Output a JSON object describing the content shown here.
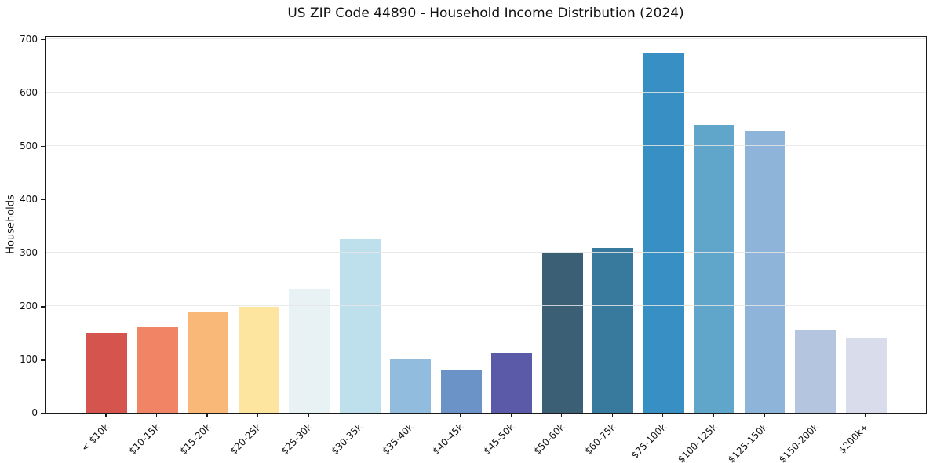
{
  "chart_data": {
    "type": "bar",
    "title": "US ZIP Code 44890 - Household Income Distribution (2024)",
    "xlabel": "",
    "ylabel": "Households",
    "categories": [
      "< $10k",
      "$10-15k",
      "$15-20k",
      "$20-25k",
      "$25-30k",
      "$30-35k",
      "$35-40k",
      "$40-45k",
      "$45-50k",
      "$50-60k",
      "$60-75k",
      "$75-100k",
      "$100-125k",
      "$125-150k",
      "$150-200k",
      "$200k+"
    ],
    "values": [
      150,
      160,
      190,
      199,
      232,
      326,
      102,
      80,
      112,
      298,
      309,
      674,
      540,
      527,
      155,
      140
    ],
    "bar_colors": [
      "#d5544d",
      "#f08465",
      "#f9b877",
      "#fde5a0",
      "#e8f2f5",
      "#bde0ec",
      "#92bcdd",
      "#6b93c8",
      "#5a5aa8",
      "#3b5f74",
      "#377a9e",
      "#378fc3",
      "#60a5ca",
      "#8fb4d9",
      "#b4c5df",
      "#d9dcea"
    ],
    "yticks": [
      0,
      100,
      200,
      300,
      400,
      500,
      600,
      700
    ],
    "ylim": [
      0,
      707
    ],
    "xtick_rotation": 45,
    "grid": "horizontal, drawn over bars",
    "grid_color": "#e5e5e5",
    "spine_color": "#1a1a1a",
    "background": "#ffffff",
    "legend": "none"
  }
}
